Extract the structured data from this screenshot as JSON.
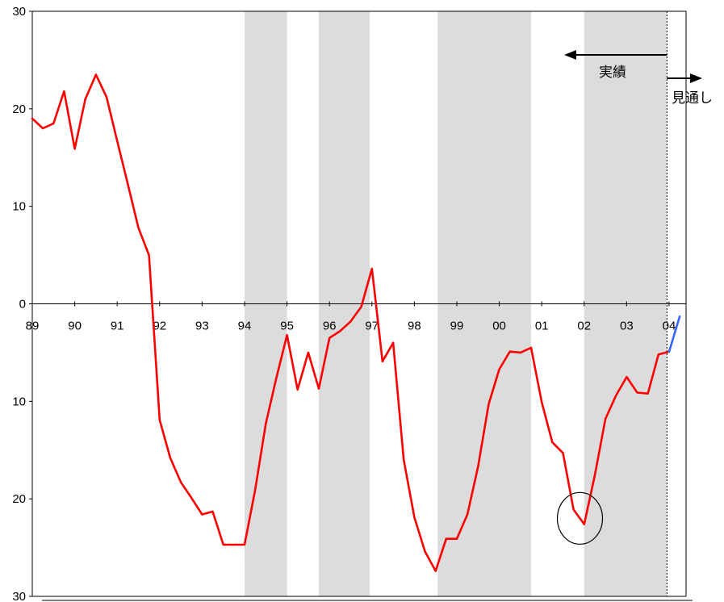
{
  "chart_data": {
    "type": "line",
    "title": "",
    "xlabel": "",
    "ylabel": "",
    "ylim": [
      -30,
      30
    ],
    "y_ticks": [
      30,
      20,
      10,
      0,
      -10,
      -20,
      -30
    ],
    "y_tick_labels": [
      "30",
      "20",
      "10",
      "0",
      "10",
      "20",
      "30"
    ],
    "x_ticks": [
      1989,
      1990,
      1991,
      1992,
      1993,
      1994,
      1995,
      1996,
      1997,
      1998,
      1999,
      2000,
      2001,
      2002,
      2003,
      2004
    ],
    "x_tick_labels": [
      "89",
      "90",
      "91",
      "92",
      "93",
      "94",
      "95",
      "96",
      "97",
      "98",
      "99",
      "00",
      "01",
      "02",
      "03",
      "04"
    ],
    "grid": false,
    "shaded_periods": [
      [
        1994.0,
        1995.0
      ],
      [
        1995.75,
        1996.95
      ],
      [
        1998.55,
        2000.75
      ],
      [
        2002.0,
        2003.95
      ]
    ],
    "divider_x": 2003.95,
    "annotations": {
      "actual": "実績",
      "forecast": "見通し"
    },
    "series": [
      {
        "color": "#ff0000",
        "x": [
          1989.0,
          1989.25,
          1989.5,
          1989.75,
          1990.0,
          1990.25,
          1990.5,
          1990.75,
          1991.0,
          1991.25,
          1991.5,
          1991.75,
          1992.0,
          1992.25,
          1992.5,
          1992.75,
          1993.0,
          1993.25,
          1993.5,
          1993.75,
          1994.0,
          1994.25,
          1994.5,
          1994.75,
          1995.0,
          1995.25,
          1995.5,
          1995.75,
          1996.0,
          1996.25,
          1996.5,
          1996.75,
          1997.0,
          1997.25,
          1997.5,
          1997.75,
          1998.0,
          1998.25,
          1998.5,
          1998.75,
          1999.0,
          1999.25,
          1999.5,
          1999.75,
          2000.0,
          2000.25,
          2000.5,
          2000.75,
          2001.0,
          2001.25,
          2001.5,
          2001.75,
          2002.0,
          2002.25,
          2002.5,
          2002.75,
          2003.0,
          2003.25,
          2003.5,
          2003.75,
          2004.0
        ],
        "values": [
          19,
          18,
          18.5,
          21.8,
          15.9,
          21,
          23.5,
          21.2,
          16.7,
          12.3,
          7.8,
          5,
          -11.9,
          -15.8,
          -18.3,
          -19.9,
          -21.6,
          -21.3,
          -24.7,
          -24.7,
          -24.7,
          -19.1,
          -12.3,
          -7.6,
          -3.2,
          -8.8,
          -5,
          -8.7,
          -3.5,
          -2.8,
          -1.8,
          -0.3,
          3.6,
          -5.9,
          -4,
          -16,
          -21.9,
          -25.4,
          -27.4,
          -24.1,
          -24.1,
          -21.6,
          -16.7,
          -10.3,
          -6.7,
          -4.9,
          -5,
          -4.5,
          -10.1,
          -14.2,
          -15.3,
          -21.1,
          -22.6,
          -17.6,
          -11.8,
          -9.4,
          -7.5,
          -9.1,
          -9.2,
          -5.2,
          -4.9
        ]
      },
      {
        "color": "#3366ff",
        "x": [
          2004.0,
          2004.25
        ],
        "values": [
          -4.9,
          -1.3
        ]
      }
    ]
  }
}
